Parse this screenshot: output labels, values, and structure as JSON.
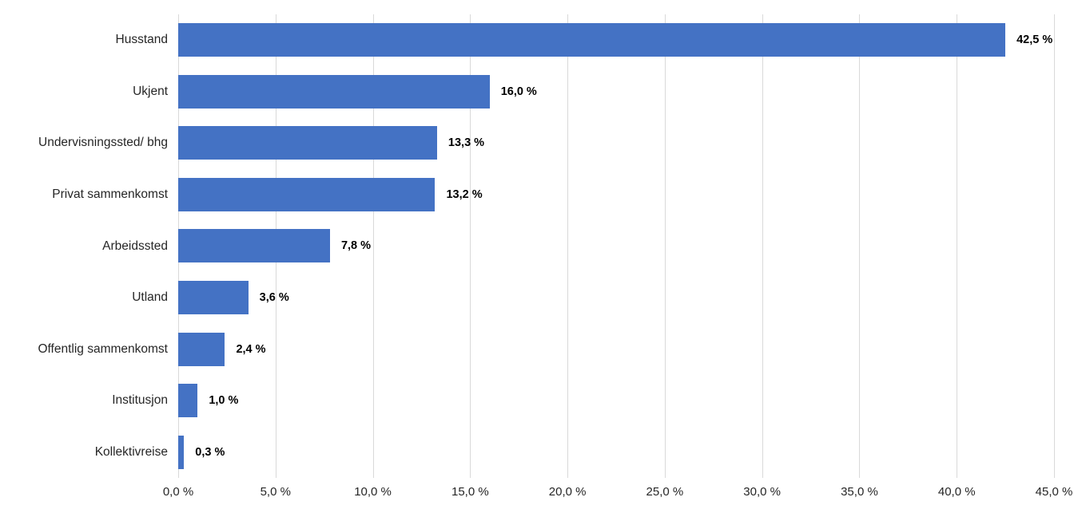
{
  "chart_data": {
    "type": "bar",
    "orientation": "horizontal",
    "title": "",
    "xlabel": "",
    "ylabel": "",
    "legend": "none",
    "grid": "vertical",
    "categories": [
      "Husstand",
      "Ukjent",
      "Undervisningssted/ bhg",
      "Privat sammenkomst",
      "Arbeidssted",
      "Utland",
      "Offentlig sammenkomst",
      "Institusjon",
      "Kollektivreise"
    ],
    "values": [
      42.5,
      16.0,
      13.3,
      13.2,
      7.8,
      3.6,
      2.4,
      1.0,
      0.3
    ],
    "data_labels": [
      "42,5 %",
      "16,0 %",
      "13,3 %",
      "13,2 %",
      "7,8 %",
      "3,6 %",
      "2,4 %",
      "1,0 %",
      "0,3 %"
    ],
    "xlim": [
      0,
      45
    ],
    "x_ticks": [
      {
        "value": 0,
        "label": "0,0 %"
      },
      {
        "value": 5,
        "label": "5,0 %"
      },
      {
        "value": 10,
        "label": "10,0 %"
      },
      {
        "value": 15,
        "label": "15,0 %"
      },
      {
        "value": 20,
        "label": "20,0 %"
      },
      {
        "value": 25,
        "label": "25,0 %"
      },
      {
        "value": 30,
        "label": "30,0 %"
      },
      {
        "value": 35,
        "label": "35,0 %"
      },
      {
        "value": 40,
        "label": "40,0 %"
      },
      {
        "value": 45,
        "label": "45,0 %"
      }
    ],
    "colors": {
      "bar": "#4472c4",
      "gridline": "#d9d9d9",
      "background": "#ffffff",
      "category_text": "#262626",
      "tick_text": "#262626",
      "value_text": "#000000"
    }
  }
}
